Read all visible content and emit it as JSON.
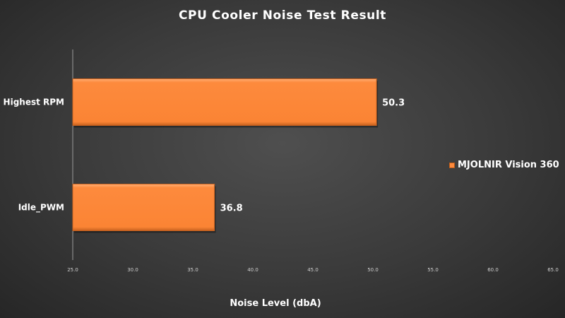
{
  "chart_data": {
    "type": "bar",
    "orientation": "horizontal",
    "title": "CPU Cooler Noise Test Result",
    "xlabel": "Noise Level (dbA)",
    "ylabel": "",
    "categories": [
      "Highest RPM",
      "Idle_PWM"
    ],
    "series": [
      {
        "name": "MJOLNIR Vision 360",
        "values": [
          50.3,
          36.8
        ],
        "color": "#fd8a3d"
      }
    ],
    "xlim": [
      25.0,
      65.0
    ],
    "x_ticks": [
      "25.0",
      "30.0",
      "35.0",
      "40.0",
      "45.0",
      "50.0",
      "55.0",
      "60.0",
      "65.0"
    ],
    "data_labels": [
      "50.3",
      "36.8"
    ],
    "grid": false,
    "legend_position": "right"
  }
}
